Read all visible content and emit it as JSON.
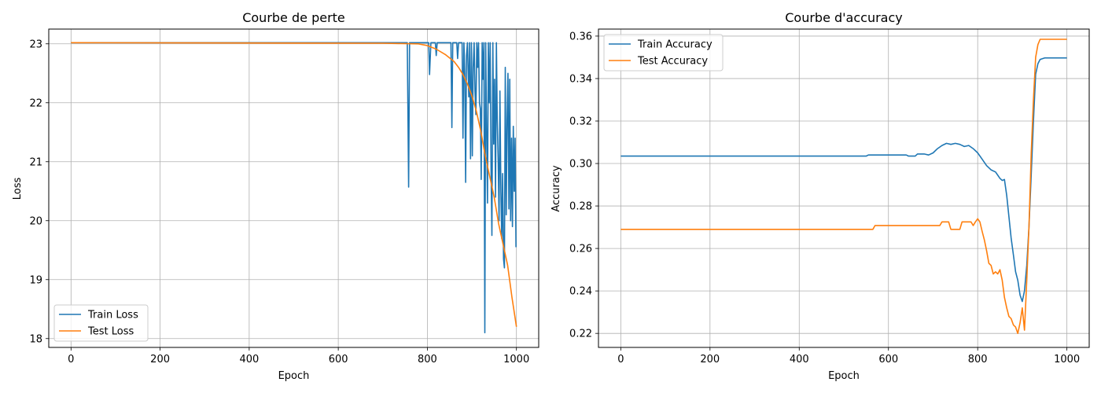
{
  "chart_data": [
    {
      "type": "line",
      "title": "Courbe de perte",
      "xlabel": "Epoch",
      "ylabel": "Loss",
      "xlim": [
        -50,
        1050
      ],
      "ylim": [
        17.85,
        23.25
      ],
      "xticks": [
        0,
        200,
        400,
        600,
        800,
        1000
      ],
      "yticks": [
        18,
        19,
        20,
        21,
        22,
        23
      ],
      "grid": true,
      "legend": "lower-left",
      "series": [
        {
          "name": "Train Loss",
          "color": "#1f77b4",
          "x": [
            0,
            755,
            758,
            760,
            762,
            803,
            805,
            808,
            818,
            820,
            822,
            853,
            855,
            857,
            866,
            868,
            870,
            878,
            880,
            882,
            884,
            886,
            888,
            890,
            893,
            895,
            897,
            899,
            901,
            903,
            905,
            907,
            909,
            911,
            913,
            915,
            917,
            919,
            921,
            923,
            925,
            927,
            929,
            931,
            933,
            935,
            937,
            939,
            941,
            943,
            945,
            947,
            949,
            951,
            953,
            955,
            957,
            959,
            961,
            963,
            965,
            967,
            969,
            971,
            973,
            975,
            977,
            979,
            981,
            983,
            985,
            987,
            989,
            991,
            993,
            995,
            997,
            999
          ],
          "values": [
            23.02,
            23.02,
            20.57,
            23.02,
            23.02,
            23.02,
            22.48,
            23.02,
            23.02,
            22.8,
            23.02,
            23.02,
            21.58,
            23.02,
            23.02,
            22.75,
            23.02,
            23.02,
            21.4,
            23.02,
            22.5,
            20.65,
            22.8,
            23.02,
            22.1,
            23.02,
            21.05,
            23.02,
            21.1,
            22.6,
            23.02,
            22.2,
            21.8,
            23.02,
            22.6,
            23.02,
            22.0,
            21.9,
            20.7,
            23.02,
            22.4,
            23.02,
            18.1,
            23.02,
            21.6,
            20.3,
            23.02,
            22.0,
            23.02,
            20.9,
            19.75,
            23.02,
            21.3,
            22.4,
            20.4,
            23.02,
            21.7,
            21.0,
            20.0,
            22.2,
            20.5,
            19.7,
            20.8,
            19.35,
            19.2,
            22.6,
            20.1,
            21.7,
            22.5,
            20.2,
            22.4,
            20.0,
            21.4,
            19.9,
            21.6,
            20.5,
            21.4,
            19.55
          ]
        },
        {
          "name": "Test Loss",
          "color": "#ff7f0e",
          "x": [
            0,
            700,
            780,
            800,
            820,
            840,
            860,
            870,
            880,
            890,
            900,
            910,
            920,
            930,
            940,
            950,
            960,
            970,
            980,
            990,
            1000
          ],
          "values": [
            23.02,
            23.01,
            23.0,
            22.97,
            22.91,
            22.82,
            22.7,
            22.6,
            22.48,
            22.32,
            22.12,
            21.86,
            21.52,
            21.1,
            20.75,
            20.4,
            19.95,
            19.6,
            19.25,
            18.7,
            18.2
          ]
        }
      ]
    },
    {
      "type": "line",
      "title": "Courbe d'accuracy",
      "xlabel": "Epoch",
      "ylabel": "Accuracy",
      "xlim": [
        -50,
        1050
      ],
      "ylim": [
        0.2134,
        0.3633
      ],
      "xticks": [
        0,
        200,
        400,
        600,
        800,
        1000
      ],
      "yticks": [
        0.22,
        0.24,
        0.26,
        0.28,
        0.3,
        0.32,
        0.34,
        0.36
      ],
      "grid": true,
      "legend": "top-left",
      "series": [
        {
          "name": "Train Accuracy",
          "color": "#1f77b4",
          "x": [
            0,
            550,
            555,
            640,
            645,
            660,
            665,
            680,
            690,
            700,
            710,
            720,
            730,
            740,
            750,
            760,
            770,
            780,
            790,
            800,
            810,
            820,
            830,
            840,
            850,
            855,
            860,
            865,
            870,
            875,
            880,
            885,
            890,
            895,
            900,
            905,
            910,
            915,
            920,
            925,
            930,
            935,
            940,
            950,
            960,
            1000
          ],
          "values": [
            0.3035,
            0.3035,
            0.304,
            0.304,
            0.3035,
            0.3035,
            0.3045,
            0.3045,
            0.304,
            0.305,
            0.307,
            0.3085,
            0.3095,
            0.309,
            0.3095,
            0.309,
            0.308,
            0.3085,
            0.307,
            0.305,
            0.302,
            0.299,
            0.297,
            0.296,
            0.293,
            0.292,
            0.2925,
            0.285,
            0.275,
            0.265,
            0.257,
            0.249,
            0.245,
            0.238,
            0.235,
            0.24,
            0.252,
            0.27,
            0.295,
            0.32,
            0.342,
            0.347,
            0.349,
            0.3497,
            0.3497,
            0.3497
          ]
        },
        {
          "name": "Test Accuracy",
          "color": "#ff7f0e",
          "x": [
            0,
            565,
            570,
            715,
            720,
            735,
            740,
            760,
            765,
            785,
            790,
            795,
            800,
            805,
            810,
            815,
            820,
            825,
            830,
            835,
            840,
            845,
            850,
            855,
            860,
            865,
            870,
            875,
            880,
            885,
            890,
            895,
            900,
            905,
            910,
            915,
            920,
            925,
            930,
            935,
            940,
            1000
          ],
          "values": [
            0.269,
            0.269,
            0.2708,
            0.2708,
            0.2725,
            0.2725,
            0.269,
            0.269,
            0.2725,
            0.2725,
            0.2708,
            0.2725,
            0.274,
            0.2725,
            0.268,
            0.264,
            0.259,
            0.253,
            0.252,
            0.248,
            0.249,
            0.248,
            0.25,
            0.245,
            0.237,
            0.232,
            0.228,
            0.227,
            0.224,
            0.223,
            0.22,
            0.225,
            0.232,
            0.2215,
            0.245,
            0.27,
            0.305,
            0.33,
            0.35,
            0.356,
            0.3585,
            0.3585
          ]
        }
      ]
    }
  ]
}
